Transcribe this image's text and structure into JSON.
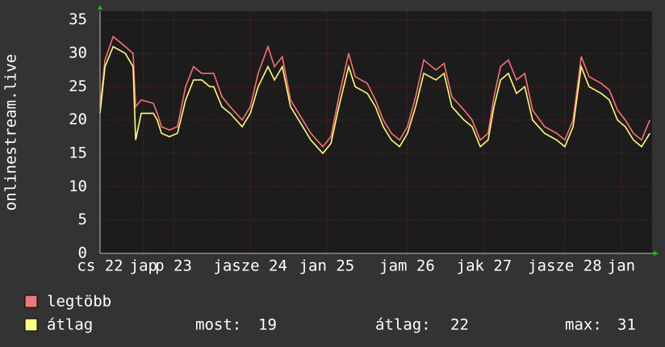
{
  "chart_data": {
    "type": "line",
    "y_label": "onlinestream.live",
    "x": [
      0,
      1.5,
      4,
      7.7,
      10.1,
      10.9,
      12.6,
      16.3,
      17.5,
      18.8,
      21.2,
      23.7,
      26.2,
      28.6,
      31.1,
      33.6,
      34.8,
      37.3,
      39.8,
      43.5,
      46,
      48.4,
      51.4,
      53.4,
      55.8,
      58.3,
      60.8,
      64.5,
      68.2,
      70.7,
      73.1,
      76.1,
      78.1,
      81.8,
      84.3,
      86.7,
      89.2,
      91.7,
      94.1,
      96.6,
      99.1,
      102.8,
      105.3,
      107.7,
      111.4,
      113.9,
      116.4,
      118.8,
      120.6,
      122.6,
      125,
      127.5,
      130,
      132.4,
      136.1,
      139.8,
      142.3,
      144.8,
      147.3,
      149.7,
      153.4,
      155.9,
      158.4,
      160.8,
      163.3,
      165.8,
      168.3
    ],
    "series": [
      {
        "name": "legtöbb",
        "color": "#ff6f6f",
        "values": [
          22,
          29,
          32.5,
          31,
          30,
          22,
          23,
          22.5,
          21,
          19,
          18.5,
          19,
          25,
          28,
          27,
          27,
          27,
          23.5,
          22,
          20,
          22,
          27,
          31,
          28,
          29.5,
          23,
          21,
          18,
          16,
          17.5,
          23.5,
          30,
          26.5,
          25.5,
          23,
          20,
          18,
          17,
          19,
          23.5,
          29,
          27.5,
          28.5,
          23.5,
          21.5,
          20,
          17,
          18,
          23.5,
          28,
          29,
          26,
          27,
          21.5,
          19,
          18,
          17,
          20,
          29.5,
          26.5,
          25.5,
          24.5,
          21.5,
          20,
          18,
          17,
          20
        ]
      },
      {
        "name": "átlag",
        "color": "#ffff70",
        "values": [
          21,
          28,
          31,
          30,
          28,
          17,
          21,
          21,
          20,
          18,
          17.5,
          18,
          23,
          26,
          26,
          25,
          25,
          22,
          21,
          19,
          21,
          25,
          28,
          26,
          28,
          22,
          20,
          17,
          15,
          16.5,
          22,
          28,
          25,
          24,
          22,
          19,
          17,
          16,
          18,
          22,
          27,
          26,
          27,
          22,
          20,
          19,
          16,
          17,
          22,
          26,
          27,
          24,
          25,
          20,
          18,
          17,
          16,
          19,
          28,
          25,
          24,
          23,
          20,
          19,
          17,
          16,
          18
        ]
      }
    ],
    "xlim": [
      0,
      169
    ],
    "xticks": [
      {
        "value": 0,
        "label": "cs 22"
      },
      {
        "value": 13.3,
        "label": "jap"
      },
      {
        "value": 22.5,
        "label": "p 23"
      },
      {
        "value": 46,
        "label": "jasze 24"
      },
      {
        "value": 69.4,
        "label": "jan 25"
      },
      {
        "value": 94,
        "label": "jam 26"
      },
      {
        "value": 117.6,
        "label": "jak 27"
      },
      {
        "value": 142.3,
        "label": "jasze 28"
      },
      {
        "value": 159.6,
        "label": "jan"
      }
    ],
    "ylim": [
      0,
      36.3
    ],
    "yticks": [
      0,
      5,
      10,
      15,
      20,
      25,
      30,
      35
    ],
    "grid": true,
    "legend_colors": [
      "#f07878",
      "#ffff80"
    ],
    "stats": [
      {
        "label": "most:",
        "value": 19
      },
      {
        "label": "átlag:",
        "value": 22
      },
      {
        "label": "max:",
        "value": 31
      }
    ]
  }
}
